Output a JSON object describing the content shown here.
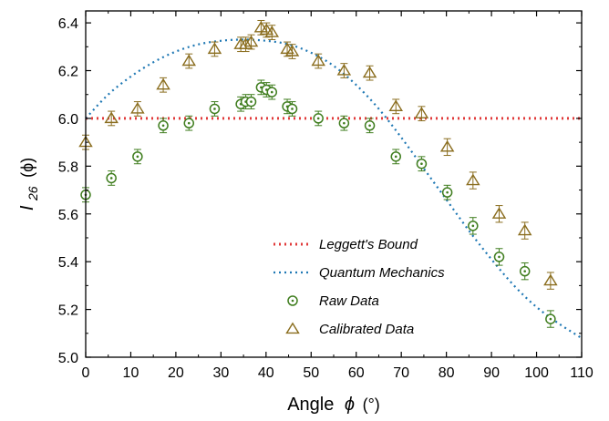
{
  "chart_data": {
    "type": "scatter",
    "xlabel": "Angle",
    "xlabel_symbol": "ϕ",
    "xlabel_unit": "(°)",
    "ylabel_main": "I",
    "ylabel_sub": "26",
    "ylabel_arg": "(ϕ)",
    "xlim": [
      0,
      110
    ],
    "ylim": [
      5.0,
      6.45
    ],
    "xticks": [
      0,
      10,
      20,
      30,
      40,
      50,
      60,
      70,
      80,
      90,
      100,
      110
    ],
    "yticks": [
      5.0,
      5.2,
      5.4,
      5.6,
      5.8,
      6.0,
      6.2,
      6.4
    ],
    "legend_position": "bottom-center",
    "colors": {
      "leggett": "#e03a3a",
      "quantum": "#1f78b4",
      "raw": "#3f7d1e",
      "calibrated": "#8a6d1e"
    },
    "series": [
      {
        "name": "Leggett's Bound",
        "kind": "dotted-line",
        "x": [
          0,
          110
        ],
        "y": [
          6.0,
          6.0
        ]
      },
      {
        "name": "Quantum Mechanics",
        "kind": "dotted-curve",
        "x": [
          0,
          5,
          10,
          15,
          20,
          25,
          30,
          35,
          40,
          45,
          50,
          55,
          60,
          65,
          70,
          75,
          80,
          85,
          90,
          95,
          100,
          105,
          110
        ],
        "y": [
          6.0,
          6.1,
          6.175,
          6.235,
          6.28,
          6.31,
          6.325,
          6.33,
          6.325,
          6.31,
          6.275,
          6.22,
          6.14,
          6.04,
          5.92,
          5.79,
          5.66,
          5.53,
          5.41,
          5.3,
          5.21,
          5.14,
          5.08
        ]
      },
      {
        "name": "Raw Data",
        "kind": "circle-markers",
        "x": [
          0,
          5.7,
          11.5,
          17.2,
          22.9,
          28.6,
          34.4,
          35.5,
          36.7,
          38.9,
          40.1,
          41.3,
          44.7,
          45.8,
          51.6,
          57.3,
          63.0,
          68.8,
          74.5,
          80.2,
          85.9,
          91.7,
          97.4,
          103.1
        ],
        "y": [
          5.68,
          5.75,
          5.84,
          5.97,
          5.98,
          6.04,
          6.06,
          6.07,
          6.07,
          6.13,
          6.12,
          6.11,
          6.05,
          6.04,
          6.0,
          5.98,
          5.97,
          5.84,
          5.81,
          5.69,
          5.55,
          5.42,
          5.36,
          5.16
        ],
        "err": [
          0.03,
          0.03,
          0.03,
          0.03,
          0.03,
          0.03,
          0.03,
          0.03,
          0.03,
          0.03,
          0.03,
          0.03,
          0.03,
          0.03,
          0.03,
          0.03,
          0.03,
          0.03,
          0.03,
          0.03,
          0.035,
          0.035,
          0.035,
          0.035
        ]
      },
      {
        "name": "Calibrated Data",
        "kind": "triangle-markers",
        "x": [
          0,
          5.7,
          11.5,
          17.2,
          22.9,
          28.6,
          34.4,
          35.5,
          36.7,
          38.9,
          40.1,
          41.3,
          44.7,
          45.8,
          51.6,
          57.3,
          63.0,
          68.8,
          74.5,
          80.2,
          85.9,
          91.7,
          97.4,
          103.1
        ],
        "y": [
          5.9,
          6.0,
          6.04,
          6.14,
          6.24,
          6.29,
          6.31,
          6.31,
          6.32,
          6.38,
          6.37,
          6.36,
          6.29,
          6.28,
          6.24,
          6.2,
          6.19,
          6.05,
          6.02,
          5.88,
          5.74,
          5.6,
          5.53,
          5.32
        ],
        "err": [
          0.03,
          0.03,
          0.03,
          0.03,
          0.03,
          0.03,
          0.03,
          0.03,
          0.03,
          0.03,
          0.03,
          0.03,
          0.03,
          0.03,
          0.03,
          0.03,
          0.03,
          0.03,
          0.03,
          0.035,
          0.035,
          0.035,
          0.035,
          0.035
        ]
      }
    ]
  }
}
